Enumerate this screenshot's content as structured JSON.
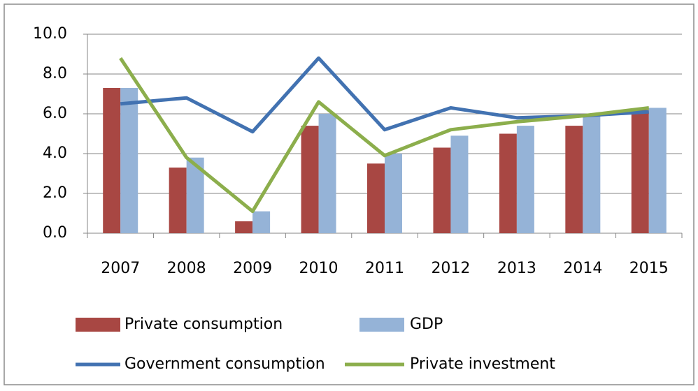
{
  "chart_data": {
    "type": "bar-line",
    "categories": [
      "2007",
      "2008",
      "2009",
      "2010",
      "2011",
      "2012",
      "2013",
      "2014",
      "2015"
    ],
    "series": [
      {
        "name": "Private consumption",
        "type": "bar",
        "color": "#a84743",
        "values": [
          7.3,
          3.3,
          0.6,
          5.4,
          3.5,
          4.3,
          5.0,
          5.4,
          6.2
        ]
      },
      {
        "name": "GDP",
        "type": "bar",
        "color": "#95b3d7",
        "values": [
          7.3,
          3.8,
          1.1,
          6.0,
          4.0,
          4.9,
          5.4,
          5.9,
          6.3
        ]
      },
      {
        "name": "Government consumption",
        "type": "line",
        "color": "#4272b1",
        "values": [
          6.5,
          6.8,
          5.1,
          8.8,
          5.2,
          6.3,
          5.8,
          5.9,
          6.1
        ]
      },
      {
        "name": "Private investment",
        "type": "line",
        "color": "#8cae4c",
        "values": [
          8.8,
          3.8,
          1.1,
          6.6,
          3.9,
          5.2,
          5.6,
          5.9,
          6.3
        ]
      }
    ],
    "ylim": [
      0,
      10
    ],
    "yticks": [
      {
        "value": 0,
        "label": "0.0"
      },
      {
        "value": 2,
        "label": "2.0"
      },
      {
        "value": 4,
        "label": "4.0"
      },
      {
        "value": 6,
        "label": "6.0"
      },
      {
        "value": 8,
        "label": "8.0"
      },
      {
        "value": 10,
        "label": "10.0"
      }
    ],
    "grid": true
  }
}
